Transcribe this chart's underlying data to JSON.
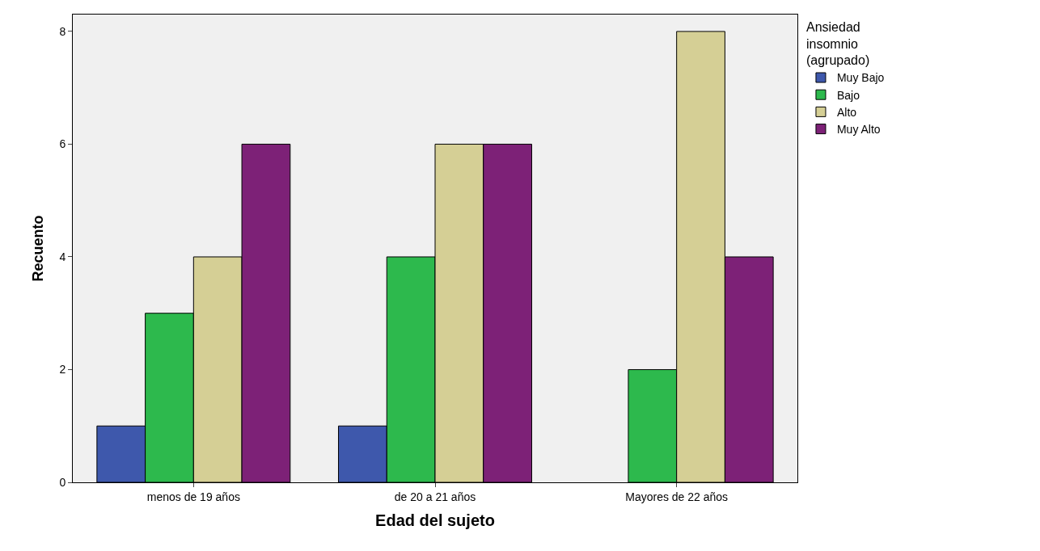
{
  "chart_data": {
    "type": "bar",
    "xlabel": "Edad del sujeto",
    "ylabel": "Recuento",
    "legend_title": "Ansiedad\ninsomnio\n(agrupado)",
    "categories": [
      "menos de 19 años",
      "de 20 a 21 años",
      "Mayores de 22 años"
    ],
    "series": [
      {
        "name": "Muy Bajo",
        "color": "#3e58ac",
        "values": [
          1,
          1,
          null
        ]
      },
      {
        "name": "Bajo",
        "color": "#2db94d",
        "values": [
          3,
          4,
          2
        ]
      },
      {
        "name": "Alto",
        "color": "#d5cf95",
        "values": [
          4,
          6,
          8
        ]
      },
      {
        "name": "Muy Alto",
        "color": "#7d2177",
        "values": [
          6,
          6,
          4
        ]
      }
    ],
    "ylim": [
      0,
      8.3
    ],
    "yticks": [
      0,
      2,
      4,
      6,
      8
    ],
    "grid": false,
    "legend": "top right"
  }
}
